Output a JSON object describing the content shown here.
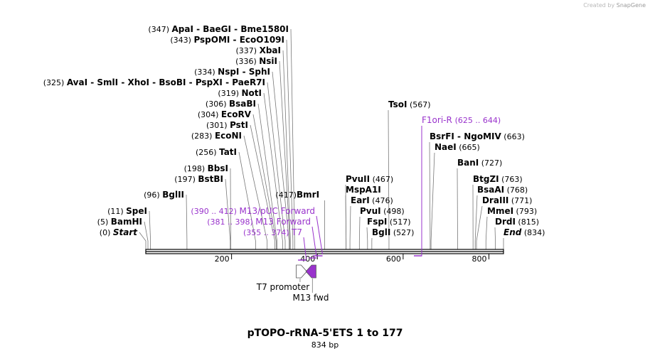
{
  "credit": {
    "prefix": "Created by",
    "brand": "SnapGene"
  },
  "map": {
    "title": "pTOPO-rRNA-5'ETS 1 to 177",
    "length_label": "834 bp",
    "total_bp": 834,
    "ticks": [
      {
        "bp": 200,
        "label": "200"
      },
      {
        "bp": 400,
        "label": "400"
      },
      {
        "bp": 600,
        "label": "600"
      },
      {
        "bp": 800,
        "label": "800"
      }
    ],
    "colors": {
      "enzyme": "#000000",
      "primer": "#9933cc",
      "line": "#777777",
      "feature_fill": "#9933cc"
    }
  },
  "left_sites": [
    {
      "pos": "(347)",
      "names": [
        "ApaI",
        "BaeGI",
        "Bme1580I"
      ],
      "bp": 347
    },
    {
      "pos": "(343)",
      "names": [
        "PspOMI",
        "EcoO109I"
      ],
      "bp": 343
    },
    {
      "pos": "(337)",
      "names": [
        "XbaI"
      ],
      "bp": 337
    },
    {
      "pos": "(336)",
      "names": [
        "NsiI"
      ],
      "bp": 336
    },
    {
      "pos": "(334)",
      "names": [
        "NspI",
        "SphI"
      ],
      "bp": 334
    },
    {
      "pos": "(325)",
      "names": [
        "AvaI",
        "SmlI",
        "XhoI",
        "BsoBI",
        "PspXI",
        "PaeR7I"
      ],
      "bp": 325
    },
    {
      "pos": "(319)",
      "names": [
        "NotI"
      ],
      "bp": 319
    },
    {
      "pos": "(306)",
      "names": [
        "BsaBI"
      ],
      "bp": 306
    },
    {
      "pos": "(304)",
      "names": [
        "EcoRV"
      ],
      "bp": 304
    },
    {
      "pos": "(301)",
      "names": [
        "PstI"
      ],
      "bp": 301
    },
    {
      "pos": "(283)",
      "names": [
        "EcoNI"
      ],
      "bp": 283
    },
    {
      "pos": "(256)",
      "names": [
        "TatI"
      ],
      "bp": 256
    },
    {
      "pos": "(198)",
      "names": [
        "BbsI"
      ],
      "bp": 198
    },
    {
      "pos": "(197)",
      "names": [
        "BstBI"
      ],
      "bp": 197
    },
    {
      "pos": "(96)",
      "names": [
        "BglII"
      ],
      "bp": 96
    },
    {
      "pos": "(11)",
      "names": [
        "SpeI"
      ],
      "bp": 11
    },
    {
      "pos": "(5)",
      "names": [
        "BamHI"
      ],
      "bp": 5
    },
    {
      "pos": "(0)",
      "names": [
        "Start"
      ],
      "bp": 0,
      "italic": true
    }
  ],
  "right_sites": [
    {
      "names": [
        "BmrI"
      ],
      "pos": "(417)",
      "bp": 417,
      "pos_left": true
    },
    {
      "names": [
        "TsoI"
      ],
      "pos": "(567)",
      "bp": 567
    },
    {
      "names": [
        "BsrFI",
        "NgoMIV"
      ],
      "pos": "(663)",
      "bp": 663
    },
    {
      "names": [
        "NaeI"
      ],
      "pos": "(665)",
      "bp": 665
    },
    {
      "names": [
        "BanI"
      ],
      "pos": "(727)",
      "bp": 727
    },
    {
      "names": [
        "PvuII"
      ],
      "pos": "(467)",
      "bp": 467
    },
    {
      "names": [
        "MspA1I"
      ],
      "pos": "",
      "bp": 467
    },
    {
      "names": [
        "EarI"
      ],
      "pos": "(476)",
      "bp": 476
    },
    {
      "names": [
        "PvuI"
      ],
      "pos": "(498)",
      "bp": 498
    },
    {
      "names": [
        "FspI"
      ],
      "pos": "(517)",
      "bp": 517
    },
    {
      "names": [
        "BglI"
      ],
      "pos": "(527)",
      "bp": 527
    },
    {
      "names": [
        "BtgZI"
      ],
      "pos": "(763)",
      "bp": 763
    },
    {
      "names": [
        "BsaAI"
      ],
      "pos": "(768)",
      "bp": 768
    },
    {
      "names": [
        "DraIII"
      ],
      "pos": "(771)",
      "bp": 771
    },
    {
      "names": [
        "MmeI"
      ],
      "pos": "(793)",
      "bp": 793
    },
    {
      "names": [
        "DrdI"
      ],
      "pos": "(815)",
      "bp": 815
    },
    {
      "names": [
        "End"
      ],
      "pos": "(834)",
      "bp": 834,
      "italic": true
    }
  ],
  "primers": [
    {
      "range": "(390 .. 412)",
      "name": "M13/pUC Forward",
      "start": 390,
      "end": 412
    },
    {
      "range": "(381 .. 398)",
      "name": "M13 Forward",
      "start": 381,
      "end": 398
    },
    {
      "range": "(355 .. 374)",
      "name": "T7",
      "start": 355,
      "end": 374
    },
    {
      "range": "(625 .. 644)",
      "name": "F1ori-R",
      "start": 625,
      "end": 644,
      "reverse": true
    }
  ],
  "features": [
    {
      "name": "T7 promoter",
      "start": 359,
      "end": 377,
      "filled": false
    },
    {
      "name": "M13 fwd",
      "start": 380,
      "end": 397,
      "filled": true
    }
  ]
}
